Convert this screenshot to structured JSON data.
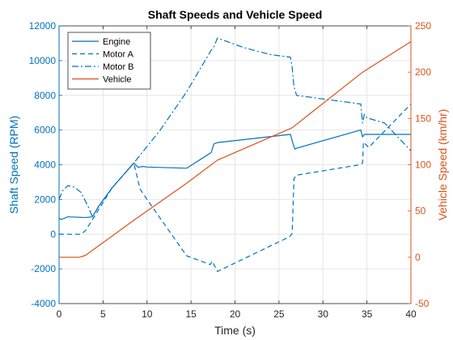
{
  "chart_data": {
    "type": "line",
    "title": "Shaft Speeds and Vehicle Speed",
    "xlabel": "Time (s)",
    "ylabel_left": "Shaft Speed (RPM)",
    "ylabel_right": "Vehicle Speed (km/hr)",
    "xlim": [
      0,
      40
    ],
    "ylim_left": [
      -4000,
      12000
    ],
    "ylim_right": [
      -50,
      250
    ],
    "xticks": [
      0,
      5,
      10,
      15,
      20,
      25,
      30,
      35,
      40
    ],
    "yticks_left": [
      -4000,
      -2000,
      0,
      2000,
      4000,
      6000,
      8000,
      10000,
      12000
    ],
    "yticks_right": [
      -50,
      0,
      50,
      100,
      150,
      200,
      250
    ],
    "grid": true,
    "legend_position": "top-left",
    "colors": {
      "left_axis": "#0072bd",
      "right_axis": "#d95319"
    },
    "series": [
      {
        "name": "Engine",
        "axis": "left",
        "style": "solid",
        "color": "#0072bd",
        "points": [
          [
            0,
            900
          ],
          [
            0.3,
            850
          ],
          [
            1,
            1000
          ],
          [
            2,
            980
          ],
          [
            3,
            960
          ],
          [
            3.8,
            1000
          ],
          [
            4.5,
            1600
          ],
          [
            6,
            2650
          ],
          [
            8.5,
            4100
          ],
          [
            9,
            3850
          ],
          [
            9.5,
            3900
          ],
          [
            10,
            3870
          ],
          [
            14.5,
            3800
          ],
          [
            17.3,
            4700
          ],
          [
            17.6,
            5200
          ],
          [
            18,
            5280
          ],
          [
            26.3,
            5750
          ],
          [
            26.6,
            5200
          ],
          [
            26.8,
            4900
          ],
          [
            27,
            4950
          ],
          [
            34.3,
            6000
          ],
          [
            34.5,
            5600
          ],
          [
            34.7,
            5750
          ],
          [
            40,
            5750
          ]
        ]
      },
      {
        "name": "Motor A",
        "axis": "left",
        "style": "dashed",
        "color": "#0072bd",
        "points": [
          [
            0,
            0
          ],
          [
            2.5,
            0
          ],
          [
            3,
            200
          ],
          [
            4,
            1000
          ],
          [
            6,
            2650
          ],
          [
            8.5,
            4100
          ],
          [
            9.2,
            2600
          ],
          [
            10,
            2000
          ],
          [
            14.5,
            -1250
          ],
          [
            17.2,
            -1750
          ],
          [
            17.4,
            -1550
          ],
          [
            18,
            -2150
          ],
          [
            26.2,
            -150
          ],
          [
            26.5,
            50
          ],
          [
            26.7,
            3200
          ],
          [
            27,
            3400
          ],
          [
            34.2,
            4000
          ],
          [
            34.5,
            4100
          ],
          [
            34.6,
            5300
          ],
          [
            35.2,
            5000
          ],
          [
            40,
            7500
          ]
        ]
      },
      {
        "name": "Motor B",
        "axis": "left",
        "style": "dashdot",
        "color": "#0072bd",
        "points": [
          [
            0,
            2000
          ],
          [
            0.4,
            2500
          ],
          [
            1,
            2800
          ],
          [
            1.8,
            2700
          ],
          [
            2.5,
            2400
          ],
          [
            3.3,
            1600
          ],
          [
            3.8,
            1000
          ],
          [
            4.5,
            1600
          ],
          [
            6,
            2650
          ],
          [
            8.5,
            4100
          ],
          [
            11.5,
            6000
          ],
          [
            14.5,
            8200
          ],
          [
            17.3,
            10600
          ],
          [
            17.6,
            10800
          ],
          [
            18,
            11300
          ],
          [
            21,
            10750
          ],
          [
            24,
            10350
          ],
          [
            26.3,
            10200
          ],
          [
            26.5,
            9600
          ],
          [
            26.7,
            8500
          ],
          [
            27,
            8000
          ],
          [
            34.3,
            7500
          ],
          [
            34.5,
            6400
          ],
          [
            34.7,
            6900
          ],
          [
            35,
            6700
          ],
          [
            37,
            6400
          ],
          [
            40,
            4800
          ]
        ]
      },
      {
        "name": "Vehicle",
        "axis": "right",
        "style": "solid",
        "color": "#d95319",
        "points": [
          [
            0,
            0
          ],
          [
            2,
            0
          ],
          [
            2.3,
            0
          ],
          [
            3,
            2
          ],
          [
            8.5,
            40
          ],
          [
            14.5,
            80
          ],
          [
            18,
            105
          ],
          [
            26.5,
            140
          ],
          [
            34.5,
            200
          ],
          [
            40,
            233
          ]
        ]
      }
    ]
  }
}
